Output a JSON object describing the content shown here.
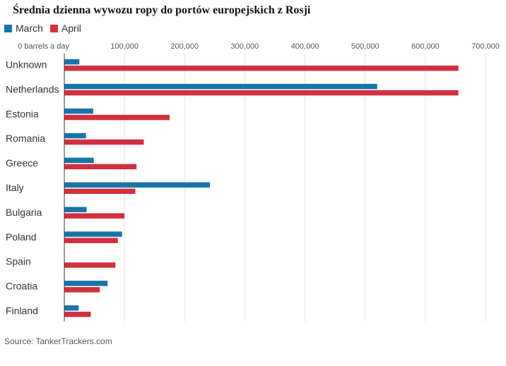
{
  "chart_data": {
    "type": "bar",
    "orientation": "horizontal",
    "title": "Średnia dzienna wywozu ropy do portów europejskich  z Rosji",
    "categories": [
      "Unknown",
      "Netherlands",
      "Estonia",
      "Romania",
      "Greece",
      "Italy",
      "Bulgaria",
      "Poland",
      "Spain",
      "Croatia",
      "Finland"
    ],
    "series": [
      {
        "name": "March",
        "color": "#1a73a8",
        "values": [
          25000,
          520000,
          48000,
          36000,
          49000,
          242000,
          37000,
          96000,
          0,
          72000,
          24000
        ]
      },
      {
        "name": "April",
        "color": "#d1303e",
        "values": [
          655000,
          655000,
          175000,
          132000,
          120000,
          118000,
          100000,
          89000,
          85000,
          59000,
          44000
        ]
      }
    ],
    "x_ticks": [
      {
        "value": 0,
        "label": "0 barrels a day"
      },
      {
        "value": 100000,
        "label": "100,000"
      },
      {
        "value": 200000,
        "label": "200,000"
      },
      {
        "value": 300000,
        "label": "300,000"
      },
      {
        "value": 400000,
        "label": "400,000"
      },
      {
        "value": 500000,
        "label": "500,000"
      },
      {
        "value": 600000,
        "label": "600,000"
      },
      {
        "value": 700000,
        "label": "700,000"
      }
    ],
    "xlim": [
      0,
      700000
    ],
    "grid": true,
    "legend_position": "top-left",
    "source": "Source: TankerTrackers.com"
  }
}
